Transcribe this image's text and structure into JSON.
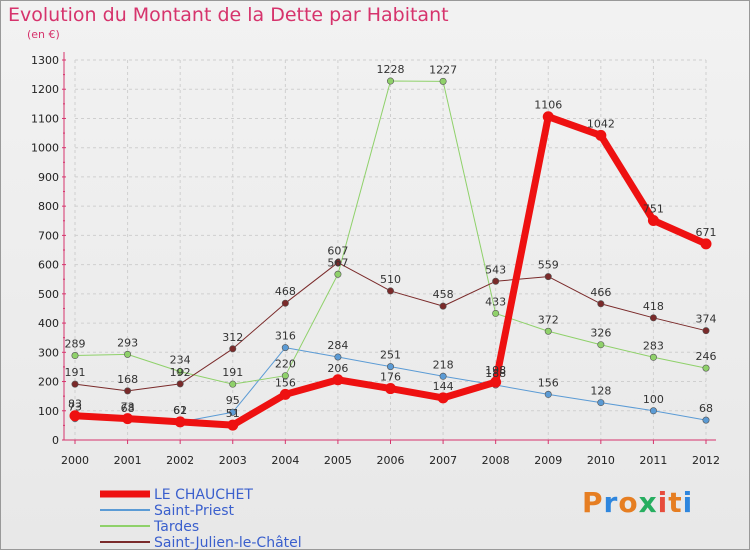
{
  "title": "Evolution du Montant de la Dette par Habitant",
  "unit_label": "(en €)",
  "logo": {
    "text": "Proxiti",
    "letter_colors": [
      "#e67e22",
      "#2e86de",
      "#e67e22",
      "#27ae60",
      "#e74c3c",
      "#e67e22",
      "#2e86de"
    ]
  },
  "chart_data": {
    "type": "line",
    "x": [
      "2000",
      "2001",
      "2002",
      "2003",
      "2004",
      "2005",
      "2006",
      "2007",
      "2008",
      "2009",
      "2010",
      "2011",
      "2012"
    ],
    "ylim": [
      0,
      1300
    ],
    "yticks": [
      0,
      100,
      200,
      300,
      400,
      500,
      600,
      700,
      800,
      900,
      1000,
      1100,
      1200,
      1300
    ],
    "grid": true,
    "legend": "bottom-left",
    "series": [
      {
        "name": "LE CHAUCHET",
        "color": "#ee1111",
        "width": 7,
        "values": [
          83,
          73,
          62,
          51,
          156,
          206,
          176,
          144,
          198,
          1106,
          1042,
          751,
          671
        ],
        "labels": [
          "83",
          "73",
          "62",
          "51",
          "156",
          "206",
          "176",
          "144",
          "198",
          "1106",
          "1042",
          "751",
          "671"
        ]
      },
      {
        "name": "Saint-Priest",
        "color": "#5b9bd5",
        "width": 1,
        "values": [
          73,
          68,
          61,
          95,
          316,
          284,
          251,
          218,
          188,
          156,
          128,
          100,
          68
        ],
        "labels": [
          "73",
          "68",
          "61",
          "95",
          "316",
          "284",
          "251",
          "218",
          "188",
          "156",
          "128",
          "100",
          "68"
        ]
      },
      {
        "name": "Tardes",
        "color": "#8fd16a",
        "width": 1,
        "values": [
          289,
          293,
          234,
          191,
          220,
          567,
          1228,
          1227,
          433,
          372,
          326,
          283,
          246
        ],
        "labels": [
          "289",
          "293",
          "234",
          "191",
          "220",
          "567",
          "1228",
          "1227",
          "433",
          "372",
          "326",
          "283",
          "246"
        ]
      },
      {
        "name": "Saint-Julien-le-Châtel",
        "color": "#7a2a2a",
        "width": 1,
        "values": [
          191,
          168,
          192,
          312,
          468,
          607,
          510,
          458,
          543,
          559,
          466,
          418,
          374
        ],
        "labels": [
          "191",
          "168",
          "192",
          "312",
          "468",
          "607",
          "510",
          "458",
          "543",
          "559",
          "466",
          "418",
          "374"
        ]
      }
    ]
  }
}
